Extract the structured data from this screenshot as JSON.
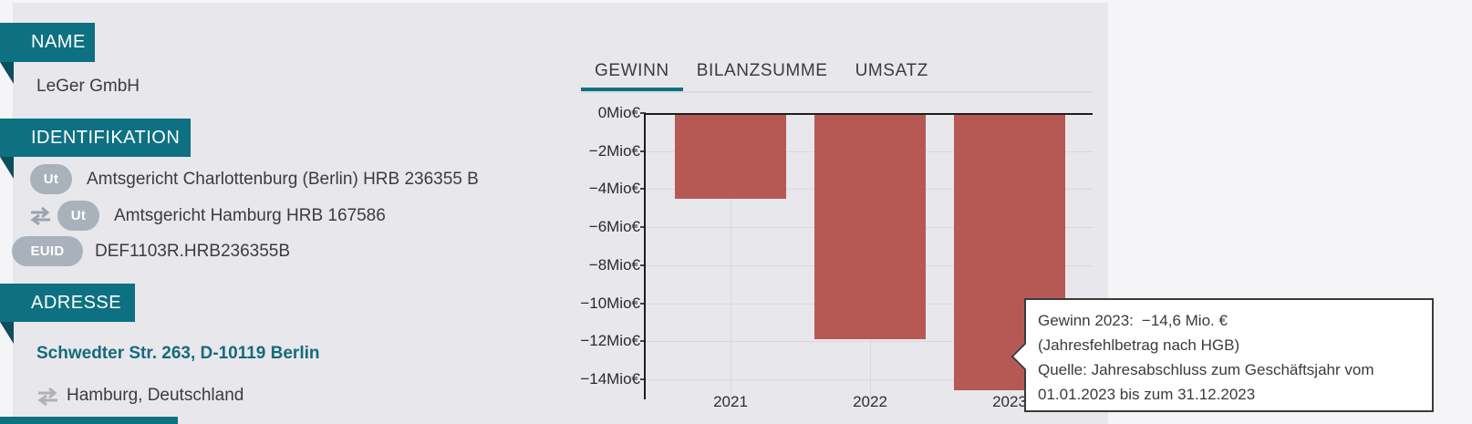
{
  "colors": {
    "teal": "#0e7181",
    "fold": "#0c4e5b",
    "badge": "#a9b2ba",
    "link": "#16697d",
    "bar": "#b65955"
  },
  "company": {
    "name_label": "NAME",
    "name": "LeGer GmbH",
    "identification_label": "IDENTIFIKATION",
    "identification": [
      {
        "badge": "Ut",
        "text": "Amtsgericht Charlottenburg (Berlin) HRB 236355 B"
      },
      {
        "badge": "Ut",
        "text": "Amtsgericht Hamburg HRB 167586"
      },
      {
        "badge": "EUID",
        "text": "DEF1103R.HRB236355B"
      }
    ],
    "address_label": "ADRESSE",
    "address_link": "Schwedter Str. 263, D-10119 Berlin",
    "address_secondary": "Hamburg, Deutschland"
  },
  "tabs": [
    {
      "label": "GEWINN",
      "active": true
    },
    {
      "label": "BILANZSUMME",
      "active": false
    },
    {
      "label": "UMSATZ",
      "active": false
    }
  ],
  "chart_data": {
    "type": "bar",
    "title": "Gewinn",
    "categories": [
      "2021",
      "2022",
      "2023"
    ],
    "values": [
      -4.5,
      -11.9,
      -14.6
    ],
    "unit": "Mio€",
    "ylabel": "",
    "xlabel": "",
    "ylim": [
      -14.6,
      0
    ],
    "ytick_values": [
      0,
      -2,
      -4,
      -6,
      -8,
      -10,
      -12,
      -14
    ],
    "ytick_labels": [
      "0Mio€",
      "−2Mio€",
      "−4Mio€",
      "−6Mio€",
      "−8Mio€",
      "−10Mio€",
      "−12Mio€",
      "−14Mio€"
    ],
    "grid": true,
    "bar_color": "#b65955"
  },
  "tooltip": {
    "title_label": "Gewinn 2023:",
    "title_value": "−14,6 Mio. €",
    "subtitle": "(Jahresfehlbetrag nach HGB)",
    "source": "Quelle: Jahresabschluss zum Geschäftsjahr vom 01.01.2023 bis zum 31.12.2023"
  }
}
